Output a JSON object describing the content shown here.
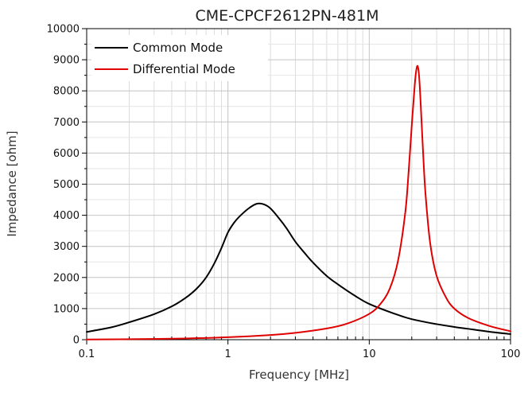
{
  "chart_data": {
    "type": "line",
    "title": "CME-CPCF2612PN-481M",
    "xlabel": "Frequency [MHz]",
    "ylabel": "Impedance [ohm]",
    "xscale": "log",
    "xlim": [
      0.1,
      100
    ],
    "ylim": [
      0,
      10000
    ],
    "xticks": [
      0.1,
      1,
      10,
      100
    ],
    "xtick_labels": [
      "0.1",
      "1",
      "10",
      "100"
    ],
    "yticks": [
      0,
      1000,
      2000,
      3000,
      4000,
      5000,
      6000,
      7000,
      8000,
      9000,
      10000
    ],
    "ytick_labels": [
      "0",
      "1000",
      "2000",
      "3000",
      "4000",
      "5000",
      "6000",
      "7000",
      "8000",
      "9000",
      "10000"
    ],
    "grid": true,
    "legend_position": "top-left",
    "series": [
      {
        "name": "Common Mode",
        "color": "#000000",
        "x": [
          0.1,
          0.15,
          0.2,
          0.3,
          0.4,
          0.5,
          0.6,
          0.7,
          0.8,
          0.9,
          1.0,
          1.1,
          1.2,
          1.4,
          1.6,
          1.8,
          2.0,
          2.3,
          2.6,
          3.0,
          3.5,
          4.0,
          5.0,
          6.0,
          8.0,
          10,
          15,
          20,
          30,
          40,
          50,
          70,
          100
        ],
        "values": [
          250,
          400,
          560,
          820,
          1070,
          1340,
          1640,
          2000,
          2450,
          2950,
          3450,
          3750,
          3950,
          4220,
          4370,
          4350,
          4220,
          3900,
          3580,
          3150,
          2780,
          2480,
          2050,
          1780,
          1400,
          1150,
          840,
          660,
          500,
          410,
          350,
          260,
          180
        ]
      },
      {
        "name": "Differential Mode",
        "color": "#e00000",
        "x": [
          0.1,
          0.2,
          0.5,
          1.0,
          2.0,
          3.0,
          5.0,
          7.0,
          10,
          12,
          14,
          16,
          18,
          19,
          20,
          21,
          21.5,
          22,
          22.5,
          23,
          24,
          25,
          27,
          30,
          35,
          40,
          50,
          70,
          100
        ],
        "values": [
          5,
          15,
          40,
          80,
          150,
          220,
          360,
          520,
          830,
          1150,
          1650,
          2550,
          4100,
          5400,
          6900,
          8200,
          8650,
          8800,
          8500,
          7800,
          6100,
          4700,
          3100,
          2050,
          1350,
          1000,
          700,
          450,
          270
        ]
      }
    ]
  }
}
